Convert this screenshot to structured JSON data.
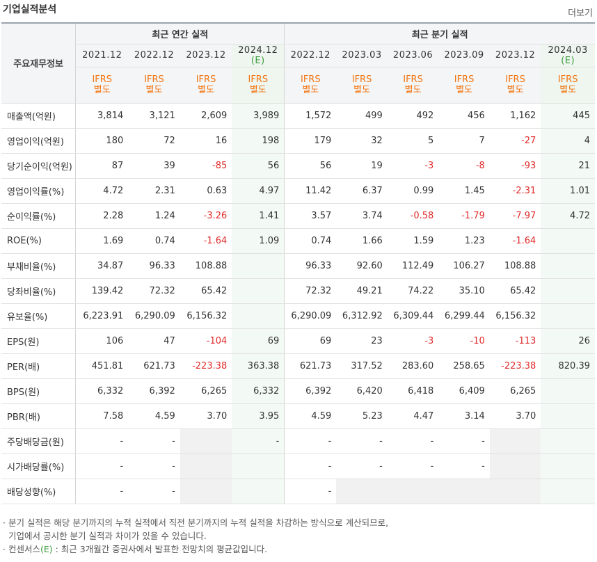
{
  "header": {
    "title": "기업실적분석",
    "more": "더보기"
  },
  "table": {
    "corner": "주요재무정보",
    "groups": {
      "annual": "최근 연간 실적",
      "quarterly": "최근 분기 실적"
    },
    "periods": [
      "2021.12",
      "2022.12",
      "2023.12",
      "2024.12",
      "2022.12",
      "2023.03",
      "2023.06",
      "2023.09",
      "2023.12",
      "2024.03"
    ],
    "estimate_mark": "(E)",
    "ifrs": [
      "IFRS",
      "IFRS",
      "IFRS",
      "IFRS",
      "IFRS",
      "IFRS",
      "IFRS",
      "IFRS",
      "IFRS",
      "IFRS"
    ],
    "basis": [
      "별도",
      "별도",
      "별도",
      "별도",
      "별도",
      "별도",
      "별도",
      "별도",
      "별도",
      "별도"
    ],
    "rows": [
      {
        "label": "매출액(억원)",
        "values": [
          "3,814",
          "3,121",
          "2,609",
          "3,989",
          "1,572",
          "499",
          "492",
          "456",
          "1,162",
          "445"
        ]
      },
      {
        "label": "영업이익(억원)",
        "values": [
          "180",
          "72",
          "16",
          "198",
          "179",
          "32",
          "5",
          "7",
          "-27",
          "4"
        ]
      },
      {
        "label": "당기순이익(억원)",
        "values": [
          "87",
          "39",
          "-85",
          "56",
          "56",
          "19",
          "-3",
          "-8",
          "-93",
          "21"
        ]
      },
      {
        "label": "영업이익률(%)",
        "values": [
          "4.72",
          "2.31",
          "0.63",
          "4.97",
          "11.42",
          "6.37",
          "0.99",
          "1.45",
          "-2.31",
          "1.01"
        ]
      },
      {
        "label": "순이익률(%)",
        "values": [
          "2.28",
          "1.24",
          "-3.26",
          "1.41",
          "3.57",
          "3.74",
          "-0.58",
          "-1.79",
          "-7.97",
          "4.72"
        ]
      },
      {
        "label": "ROE(%)",
        "values": [
          "1.69",
          "0.74",
          "-1.64",
          "1.09",
          "0.74",
          "1.66",
          "1.59",
          "1.23",
          "-1.64",
          ""
        ]
      },
      {
        "label": "부채비율(%)",
        "values": [
          "34.87",
          "96.33",
          "108.88",
          "",
          "96.33",
          "92.60",
          "112.49",
          "106.27",
          "108.88",
          ""
        ]
      },
      {
        "label": "당좌비율(%)",
        "values": [
          "139.42",
          "72.32",
          "65.42",
          "",
          "72.32",
          "49.21",
          "74.22",
          "35.10",
          "65.42",
          ""
        ]
      },
      {
        "label": "유보율(%)",
        "values": [
          "6,223.91",
          "6,290.09",
          "6,156.32",
          "",
          "6,290.09",
          "6,312.92",
          "6,309.44",
          "6,299.44",
          "6,156.32",
          ""
        ]
      },
      {
        "label": "EPS(원)",
        "values": [
          "106",
          "47",
          "-104",
          "69",
          "69",
          "23",
          "-3",
          "-10",
          "-113",
          "26"
        ]
      },
      {
        "label": "PER(배)",
        "values": [
          "451.81",
          "621.73",
          "-223.38",
          "363.38",
          "621.73",
          "317.52",
          "283.60",
          "258.65",
          "-223.38",
          "820.39"
        ]
      },
      {
        "label": "BPS(원)",
        "values": [
          "6,332",
          "6,392",
          "6,265",
          "6,332",
          "6,392",
          "6,420",
          "6,418",
          "6,409",
          "6,265",
          ""
        ]
      },
      {
        "label": "PBR(배)",
        "values": [
          "7.58",
          "4.59",
          "3.70",
          "3.95",
          "4.59",
          "5.23",
          "4.47",
          "3.14",
          "3.70",
          ""
        ]
      },
      {
        "label": "주당배당금(원)",
        "values": [
          "-",
          "-",
          "",
          "-",
          "-",
          "-",
          "-",
          "-",
          "",
          ""
        ]
      },
      {
        "label": "시가배당률(%)",
        "values": [
          "-",
          "-",
          "",
          "",
          "-",
          "-",
          "-",
          "-",
          "",
          ""
        ]
      },
      {
        "label": "배당성향(%)",
        "values": [
          "-",
          "-",
          "",
          "",
          "-",
          "",
          "",
          "",
          "",
          ""
        ]
      }
    ]
  },
  "notes": {
    "line1": "분기 실적은 해당 분기까지의 누적 실적에서 직전 분기까지의 누적 실적을 차감하는 방식으로 계산되므로,",
    "line2": "기업에서 공시한 분기 실적과 차이가 있을 수 있습니다.",
    "line3_prefix": "컨센서스",
    "line3_mark": "(E)",
    "line3_rest": " : 최근 3개월간 증권사에서 발표한 전망치의 평균값입니다."
  },
  "colors": {
    "negative": "#e12b2b",
    "ifrs": "#f2730c",
    "estimate": "#3c9a3c",
    "estimate_bg": "#f3f9f4",
    "empty_bg": "#f1f1f1"
  }
}
